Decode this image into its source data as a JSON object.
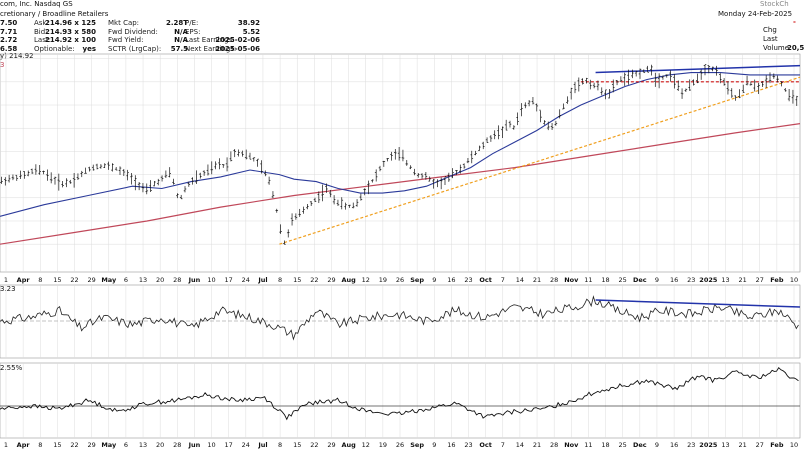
{
  "header": {
    "company": "com, Inc.  Nasdaq GS",
    "sector": "cretionary / Broadline Retailers",
    "watermark": "StockCh",
    "date": "Monday 24-Feb-2025",
    "price_partial": "20,5",
    "chg_label": "Chg",
    "last_label": "Last",
    "volume_label": "Volume",
    "chg_partial": "-",
    "col1": [
      "7.50",
      "7.71",
      "2.72",
      "6.58"
    ],
    "col2": [
      {
        "k": "Ask:",
        "v": "214.96 x 125"
      },
      {
        "k": "Bid:",
        "v": "214.93 x 580"
      },
      {
        "k": "Last:",
        "v": "214.92 x 100"
      },
      {
        "k": "Optionable:",
        "v": "yes"
      }
    ],
    "col3": [
      {
        "k": "Mkt Cap:",
        "v": "2.28T"
      },
      {
        "k": "Fwd Dividend:",
        "v": "N/A"
      },
      {
        "k": "Fwd Yield:",
        "v": "N/A"
      },
      {
        "k": "SCTR (LrgCap):",
        "v": "57.5"
      }
    ],
    "col4": [
      {
        "k": "P/E:",
        "v": "38.92"
      },
      {
        "k": "EPS:",
        "v": "5.52"
      },
      {
        "k": "Last Earnings:",
        "v": "2025-02-06"
      },
      {
        "k": "Next Earnings:",
        "v": "2025-05-06"
      }
    ],
    "legend_price": "y) 214.92",
    "legend_red": "3"
  },
  "panels": {
    "mid_label": "3.23",
    "low_label": "2.55%"
  },
  "colors": {
    "bars": "#111111",
    "ma_short": "#2b3a9a",
    "ma_long": "#c0485a",
    "trend": "#f0a020",
    "resistance": "#cc1111",
    "divergence": "#2233aa",
    "grid": "#dcdcdc",
    "refline": "#b0b0b0"
  },
  "chart_data": {
    "type": "ohlc",
    "price_axis": {
      "ylim": [
        148,
        242
      ],
      "grid": true
    },
    "x_axis_labels": [
      "1",
      "Apr",
      "8",
      "15",
      "22",
      "29",
      "May",
      "6",
      "13",
      "20",
      "28",
      "Jun",
      "10",
      "17",
      "24",
      "Jul",
      "8",
      "15",
      "22",
      "29",
      "Aug",
      "12",
      "19",
      "26",
      "Sep",
      "9",
      "16",
      "23",
      "Oct",
      "7",
      "14",
      "21",
      "28",
      "Nov",
      "11",
      "18",
      "25",
      "Dec",
      "9",
      "16",
      "23",
      "2025",
      "13",
      "21",
      "27",
      "Feb",
      "10"
    ],
    "price_path": [
      [
        0,
        187
      ],
      [
        5,
        188
      ],
      [
        12,
        189
      ],
      [
        18,
        190
      ],
      [
        24,
        192
      ],
      [
        30,
        191
      ],
      [
        36,
        188
      ],
      [
        42,
        186
      ],
      [
        48,
        187
      ],
      [
        55,
        190
      ],
      [
        62,
        193
      ],
      [
        70,
        194
      ],
      [
        78,
        193
      ],
      [
        86,
        190
      ],
      [
        94,
        186
      ],
      [
        100,
        183
      ],
      [
        105,
        186
      ],
      [
        110,
        188
      ],
      [
        115,
        191
      ],
      [
        118,
        187
      ],
      [
        120,
        181
      ],
      [
        123,
        180
      ],
      [
        126,
        184
      ],
      [
        130,
        187
      ],
      [
        135,
        189
      ],
      [
        140,
        191
      ],
      [
        145,
        193
      ],
      [
        150,
        195
      ],
      [
        153,
        193
      ],
      [
        156,
        197
      ],
      [
        160,
        200
      ],
      [
        166,
        199
      ],
      [
        172,
        197
      ],
      [
        178,
        193
      ],
      [
        184,
        186
      ],
      [
        188,
        175
      ],
      [
        190,
        170
      ],
      [
        192,
        162
      ],
      [
        194,
        160
      ],
      [
        198,
        170
      ],
      [
        204,
        173
      ],
      [
        210,
        177
      ],
      [
        216,
        180
      ],
      [
        222,
        184
      ],
      [
        226,
        180
      ],
      [
        230,
        178
      ],
      [
        236,
        176
      ],
      [
        242,
        177
      ],
      [
        248,
        183
      ],
      [
        254,
        188
      ],
      [
        260,
        194
      ],
      [
        266,
        198
      ],
      [
        272,
        199
      ],
      [
        278,
        194
      ],
      [
        284,
        190
      ],
      [
        290,
        189
      ],
      [
        296,
        186
      ],
      [
        302,
        187
      ],
      [
        308,
        190
      ],
      [
        314,
        193
      ],
      [
        320,
        197
      ],
      [
        326,
        201
      ],
      [
        332,
        205
      ],
      [
        338,
        208
      ],
      [
        342,
        209
      ],
      [
        346,
        212
      ],
      [
        350,
        210
      ],
      [
        354,
        218
      ],
      [
        358,
        220
      ],
      [
        362,
        222
      ],
      [
        366,
        218
      ],
      [
        370,
        213
      ],
      [
        374,
        210
      ],
      [
        378,
        212
      ],
      [
        382,
        218
      ],
      [
        386,
        222
      ],
      [
        390,
        228
      ],
      [
        394,
        229
      ],
      [
        398,
        231
      ],
      [
        402,
        229
      ],
      [
        406,
        228
      ],
      [
        410,
        226
      ],
      [
        414,
        224
      ],
      [
        418,
        229
      ],
      [
        422,
        231
      ],
      [
        428,
        232
      ],
      [
        434,
        234
      ],
      [
        440,
        235
      ],
      [
        444,
        236
      ],
      [
        446,
        230
      ],
      [
        450,
        232
      ],
      [
        456,
        233
      ],
      [
        460,
        229
      ],
      [
        464,
        225
      ],
      [
        468,
        227
      ],
      [
        472,
        230
      ],
      [
        476,
        233
      ],
      [
        480,
        236
      ],
      [
        484,
        236
      ],
      [
        488,
        234
      ],
      [
        492,
        230
      ],
      [
        496,
        226
      ],
      [
        500,
        223
      ],
      [
        504,
        225
      ],
      [
        508,
        230
      ],
      [
        512,
        229
      ],
      [
        516,
        227
      ],
      [
        520,
        230
      ],
      [
        526,
        233
      ],
      [
        532,
        229
      ],
      [
        536,
        224
      ],
      [
        540,
        223
      ],
      [
        544,
        222
      ]
    ],
    "ma_short": [
      [
        0,
        172
      ],
      [
        30,
        177
      ],
      [
        60,
        181
      ],
      [
        90,
        185
      ],
      [
        110,
        184
      ],
      [
        130,
        187
      ],
      [
        150,
        189
      ],
      [
        170,
        192
      ],
      [
        190,
        190
      ],
      [
        200,
        188
      ],
      [
        215,
        187
      ],
      [
        230,
        184
      ],
      [
        245,
        182
      ],
      [
        260,
        182
      ],
      [
        275,
        183
      ],
      [
        290,
        185
      ],
      [
        305,
        189
      ],
      [
        320,
        193
      ],
      [
        335,
        199
      ],
      [
        350,
        204
      ],
      [
        365,
        209
      ],
      [
        380,
        215
      ],
      [
        395,
        220
      ],
      [
        410,
        224
      ],
      [
        425,
        228
      ],
      [
        440,
        231
      ],
      [
        455,
        233
      ],
      [
        470,
        234
      ],
      [
        490,
        234
      ],
      [
        510,
        233
      ],
      [
        530,
        233
      ],
      [
        544,
        233
      ]
    ],
    "ma_long": [
      [
        0,
        160
      ],
      [
        50,
        165
      ],
      [
        100,
        170
      ],
      [
        150,
        176
      ],
      [
        200,
        181
      ],
      [
        250,
        185
      ],
      [
        300,
        189
      ],
      [
        350,
        193
      ],
      [
        400,
        198
      ],
      [
        450,
        203
      ],
      [
        500,
        208
      ],
      [
        544,
        212
      ]
    ],
    "trend_line": [
      [
        190,
        160
      ],
      [
        544,
        232
      ]
    ],
    "resistance_level": 230,
    "divergence_price": [
      [
        405,
        234
      ],
      [
        544,
        237
      ]
    ],
    "momentum_path": [
      [
        0,
        0
      ],
      [
        20,
        1
      ],
      [
        40,
        3
      ],
      [
        55,
        -2
      ],
      [
        70,
        1
      ],
      [
        90,
        -1
      ],
      [
        110,
        1
      ],
      [
        130,
        -2
      ],
      [
        150,
        3
      ],
      [
        170,
        1
      ],
      [
        185,
        -1
      ],
      [
        200,
        -4
      ],
      [
        215,
        3
      ],
      [
        230,
        -1
      ],
      [
        250,
        1
      ],
      [
        270,
        2
      ],
      [
        290,
        0
      ],
      [
        310,
        3
      ],
      [
        330,
        1
      ],
      [
        350,
        4
      ],
      [
        370,
        2
      ],
      [
        390,
        4
      ],
      [
        405,
        6
      ],
      [
        420,
        3
      ],
      [
        435,
        1
      ],
      [
        450,
        3
      ],
      [
        470,
        2
      ],
      [
        490,
        4
      ],
      [
        510,
        1
      ],
      [
        530,
        3
      ],
      [
        544,
        -2
      ]
    ],
    "divergence_momentum": [
      [
        405,
        6
      ],
      [
        544,
        4
      ]
    ],
    "relative_path": [
      [
        0,
        -1
      ],
      [
        20,
        0
      ],
      [
        40,
        -1
      ],
      [
        60,
        2
      ],
      [
        80,
        -2
      ],
      [
        100,
        1
      ],
      [
        120,
        2
      ],
      [
        140,
        4
      ],
      [
        160,
        2
      ],
      [
        180,
        3
      ],
      [
        195,
        -4
      ],
      [
        210,
        1
      ],
      [
        230,
        2
      ],
      [
        250,
        -2
      ],
      [
        270,
        -3
      ],
      [
        290,
        -1
      ],
      [
        310,
        1
      ],
      [
        330,
        -4
      ],
      [
        350,
        -2
      ],
      [
        370,
        -1
      ],
      [
        390,
        2
      ],
      [
        405,
        5
      ],
      [
        420,
        7
      ],
      [
        440,
        9
      ],
      [
        460,
        6
      ],
      [
        475,
        11
      ],
      [
        485,
        9
      ],
      [
        500,
        12
      ],
      [
        515,
        10
      ],
      [
        530,
        13
      ],
      [
        544,
        8
      ]
    ]
  }
}
